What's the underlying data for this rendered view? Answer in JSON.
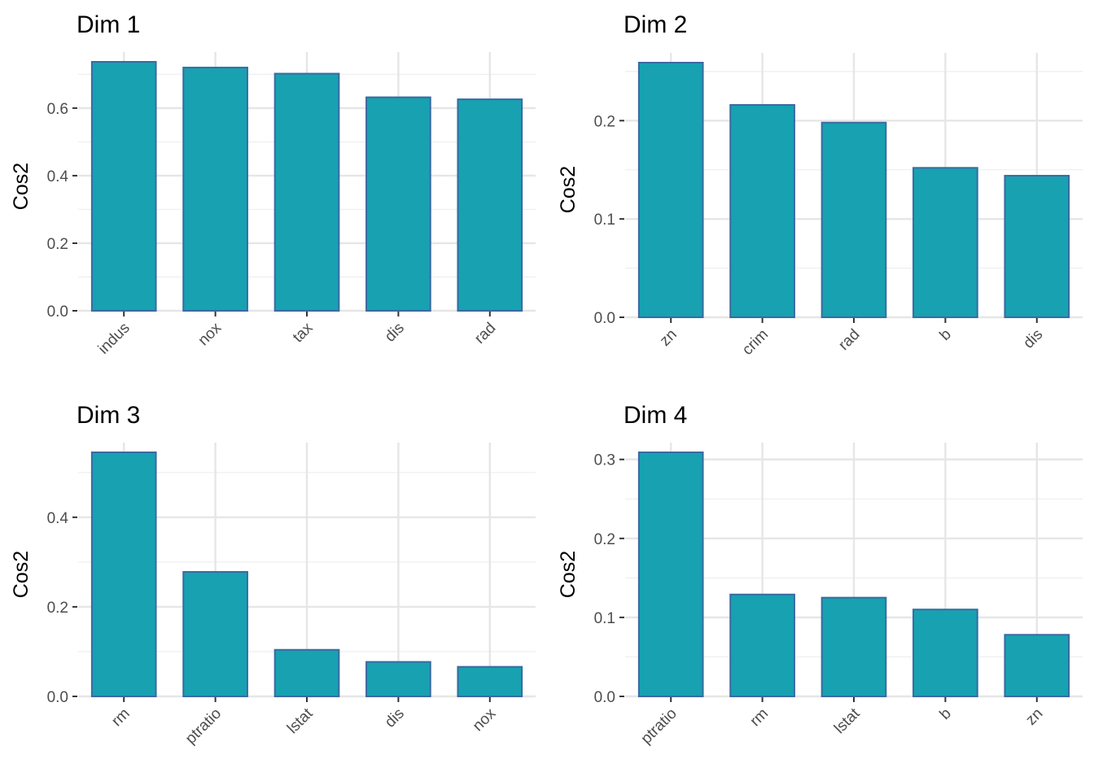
{
  "style": {
    "bar_fill": "#17a1b1",
    "bar_stroke": "#3a6aa1",
    "grid_major": "#e6e6e6",
    "grid_minor": "#f0f0f0",
    "tick_color": "#333333"
  },
  "chart_data": [
    {
      "type": "bar",
      "title": "Dim 1",
      "ylabel": "Cos2",
      "categories": [
        "indus",
        "nox",
        "tax",
        "dis",
        "rad"
      ],
      "values": [
        0.737,
        0.72,
        0.702,
        0.632,
        0.626
      ],
      "ylim": [
        0,
        0.737
      ],
      "yticks": [
        0.0,
        0.2,
        0.4,
        0.6
      ],
      "ytick_labels": [
        "0.0",
        "0.2",
        "0.4",
        "0.6"
      ],
      "grid": true
    },
    {
      "type": "bar",
      "title": "Dim 2",
      "ylabel": "Cos2",
      "categories": [
        "zn",
        "crim",
        "rad",
        "b",
        "dis"
      ],
      "values": [
        0.259,
        0.216,
        0.198,
        0.152,
        0.144
      ],
      "ylim": [
        0,
        0.259
      ],
      "yticks": [
        0.0,
        0.1,
        0.2
      ],
      "ytick_labels": [
        "0.0",
        "0.1",
        "0.2"
      ],
      "grid": true
    },
    {
      "type": "bar",
      "title": "Dim 3",
      "ylabel": "Cos2",
      "categories": [
        "rm",
        "ptratio",
        "lstat",
        "dis",
        "nox"
      ],
      "values": [
        0.545,
        0.278,
        0.104,
        0.077,
        0.066
      ],
      "ylim": [
        0,
        0.545
      ],
      "yticks": [
        0.0,
        0.2,
        0.4
      ],
      "ytick_labels": [
        "0.0",
        "0.2",
        "0.4"
      ],
      "grid": true
    },
    {
      "type": "bar",
      "title": "Dim 4",
      "ylabel": "Cos2",
      "categories": [
        "ptratio",
        "rm",
        "lstat",
        "b",
        "zn"
      ],
      "values": [
        0.309,
        0.129,
        0.125,
        0.11,
        0.078
      ],
      "ylim": [
        0,
        0.309
      ],
      "yticks": [
        0.0,
        0.1,
        0.2,
        0.3
      ],
      "ytick_labels": [
        "0.0",
        "0.1",
        "0.2",
        "0.3"
      ],
      "grid": true
    }
  ]
}
